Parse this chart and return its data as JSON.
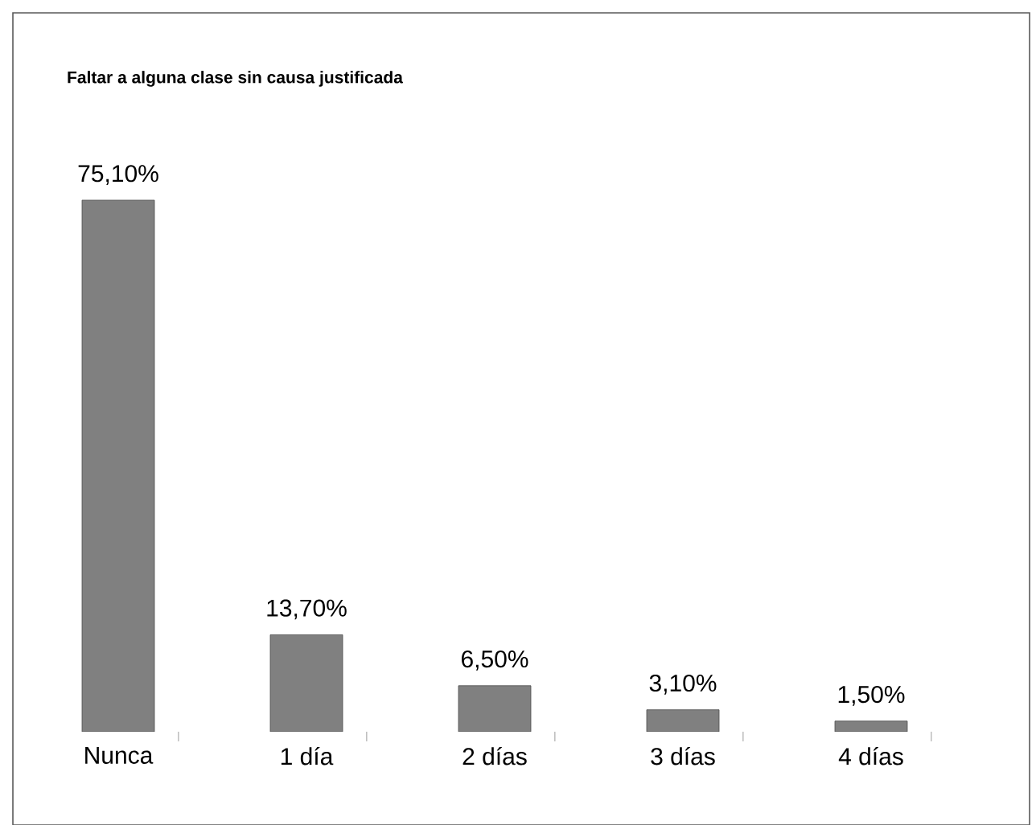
{
  "chart_data": {
    "type": "bar",
    "title": "Faltar a alguna clase sin causa justificada",
    "categories": [
      "Nunca",
      "1 día",
      "2 días",
      "3 días",
      "4 días"
    ],
    "values": [
      75.1,
      13.7,
      6.5,
      3.1,
      1.5
    ],
    "value_labels": [
      "75,10%",
      "13,70%",
      "6,50%",
      "3,10%",
      "1,50%"
    ],
    "color": "#808080"
  }
}
